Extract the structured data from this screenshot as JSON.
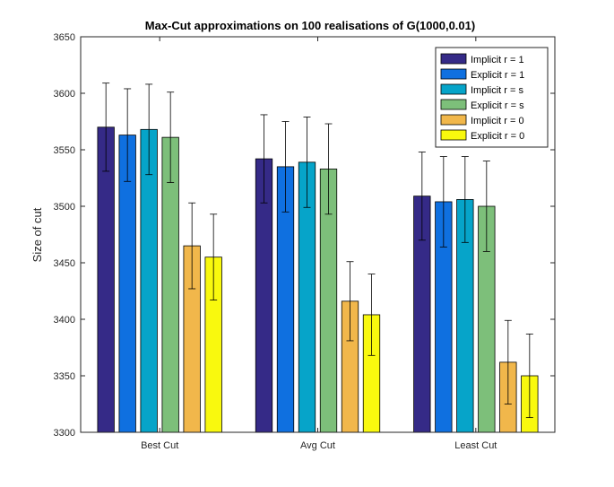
{
  "chart_data": {
    "type": "bar",
    "title": "Max-Cut approximations on 100 realisations of G(1000,0.01)",
    "xlabel": "",
    "ylabel": "Size of cut",
    "ylim": [
      3300,
      3650
    ],
    "yticks": [
      3300,
      3350,
      3400,
      3450,
      3500,
      3550,
      3600,
      3650
    ],
    "categories": [
      "Best Cut",
      "Avg Cut",
      "Least Cut"
    ],
    "legend_position": "top-right",
    "grid": false,
    "series": [
      {
        "name": "Implicit r = 1",
        "color": "#352a87",
        "values": [
          3570,
          3542,
          3509
        ],
        "errors": [
          39,
          39,
          39
        ]
      },
      {
        "name": "Explicit r = 1",
        "color": "#0f70e0",
        "values": [
          3563,
          3535,
          3504
        ],
        "errors": [
          41,
          40,
          40
        ]
      },
      {
        "name": "Implicit r = s",
        "color": "#06a4c9",
        "values": [
          3568,
          3539,
          3506
        ],
        "errors": [
          40,
          40,
          38
        ]
      },
      {
        "name": "Explicit r = s",
        "color": "#7dbf7a",
        "values": [
          3561,
          3533,
          3500
        ],
        "errors": [
          40,
          40,
          40
        ]
      },
      {
        "name": "Implicit r = 0",
        "color": "#f1b74b",
        "values": [
          3465,
          3416,
          3362
        ],
        "errors": [
          38,
          35,
          37
        ]
      },
      {
        "name": "Explicit r = 0",
        "color": "#f9f90e",
        "values": [
          3455,
          3404,
          3350
        ],
        "errors": [
          38,
          36,
          37
        ]
      }
    ]
  }
}
